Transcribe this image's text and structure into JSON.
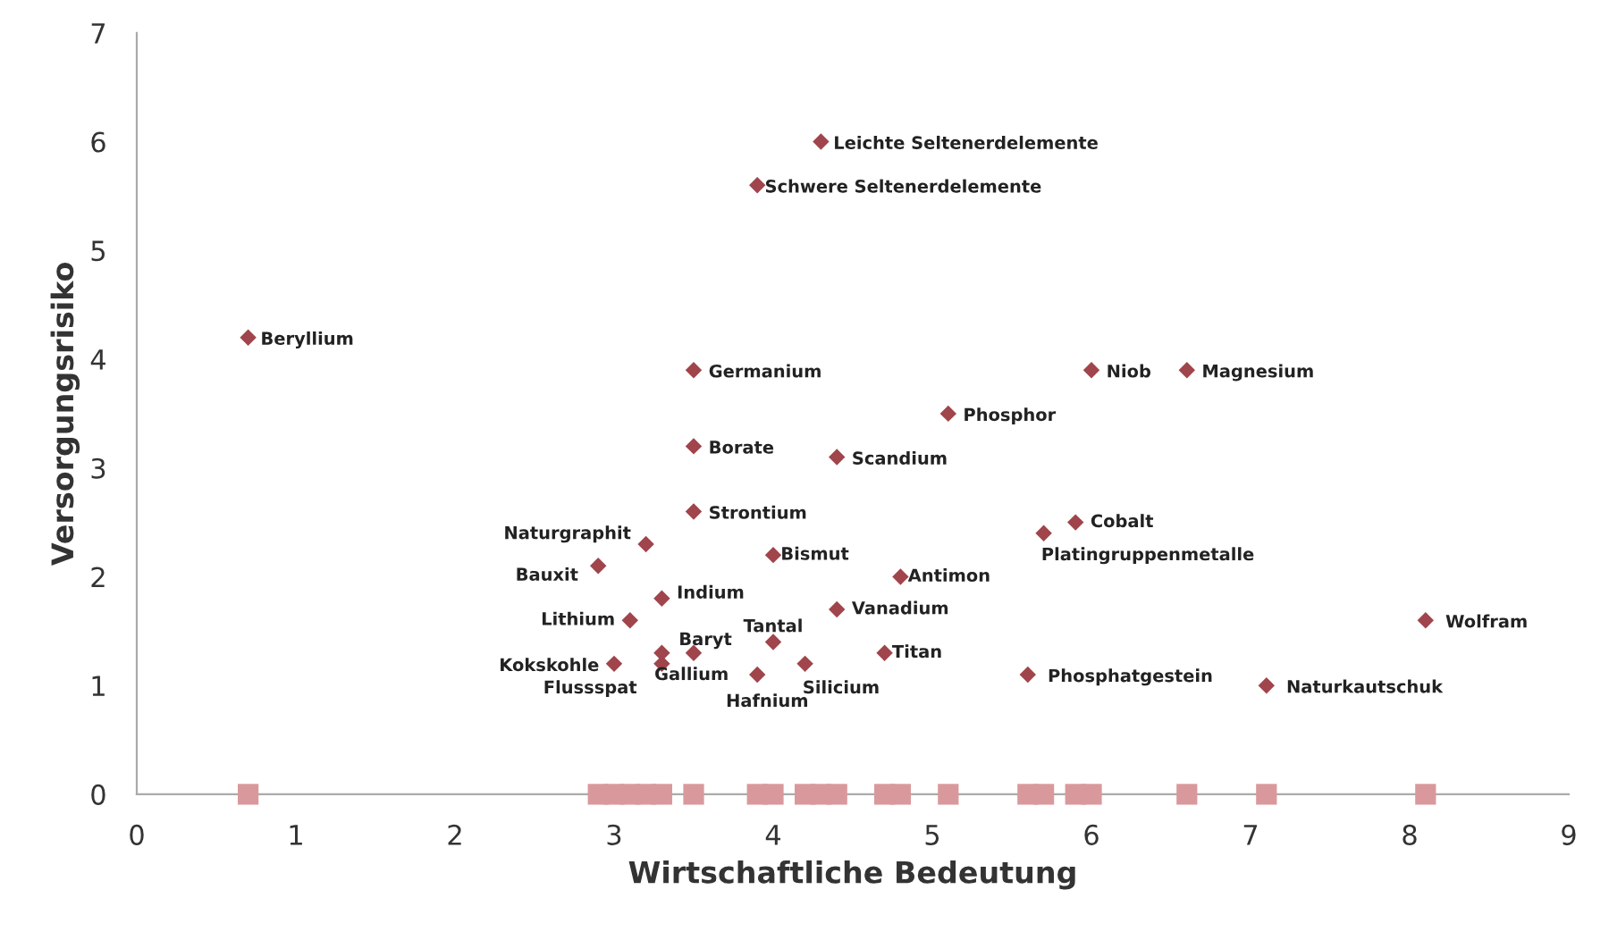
{
  "chart_data": {
    "type": "scatter",
    "xlabel": "Wirtschaftliche Bedeutung",
    "ylabel": "Versorgungsrisiko",
    "xlim": [
      0,
      9
    ],
    "xticks": [
      0,
      1,
      2,
      3,
      4,
      5,
      6,
      7,
      8,
      9
    ],
    "ylim": [
      0,
      7
    ],
    "yticks": [
      0,
      1,
      2,
      3,
      4,
      5,
      6,
      7
    ],
    "grid": false,
    "series": [
      {
        "color": "#a0454b",
        "marker": "diamond",
        "x": [
          4.3,
          3.9,
          0.7,
          3.5,
          6.0,
          6.6,
          5.1,
          3.5,
          4.4,
          3.5,
          3.2,
          2.9,
          4.0,
          4.8,
          5.9,
          5.7,
          3.3,
          4.4,
          3.1,
          3.5,
          4.0,
          4.7,
          3.0,
          3.3,
          3.3,
          3.9,
          4.2,
          5.6,
          7.1,
          8.1
        ],
        "values": [
          6.0,
          5.6,
          4.2,
          3.9,
          3.9,
          3.9,
          3.5,
          3.2,
          3.1,
          2.6,
          2.3,
          2.1,
          2.2,
          2.0,
          2.5,
          2.4,
          1.8,
          1.7,
          1.6,
          1.3,
          1.4,
          1.3,
          1.2,
          1.2,
          1.3,
          1.1,
          1.2,
          1.1,
          1.0,
          1.6
        ]
      },
      {
        "color": "#d9999c",
        "marker": "square",
        "x": [
          0.7,
          2.9,
          3.0,
          3.1,
          3.2,
          3.3,
          3.5,
          3.9,
          4.0,
          4.2,
          4.3,
          4.4,
          4.7,
          4.8,
          5.1,
          5.6,
          5.7,
          5.9,
          6.0,
          6.6,
          7.1,
          8.1
        ],
        "values": [
          0,
          0,
          0,
          0,
          0,
          0,
          0,
          0,
          0,
          0,
          0,
          0,
          0,
          0,
          0,
          0,
          0,
          0,
          0,
          0,
          0,
          0
        ]
      }
    ],
    "annotations": [
      {
        "text": "Leichte Seltenerdelemente",
        "x": 4.3,
        "y": 6.0
      },
      {
        "text": "Schwere Seltenerdelemente",
        "x": 3.9,
        "y": 5.6
      },
      {
        "text": "Beryllium",
        "x": 0.7,
        "y": 4.2
      },
      {
        "text": "Germanium",
        "x": 3.5,
        "y": 3.9
      },
      {
        "text": "Niob",
        "x": 6.0,
        "y": 3.9
      },
      {
        "text": "Magnesium",
        "x": 6.6,
        "y": 3.9
      },
      {
        "text": "Phosphor",
        "x": 5.1,
        "y": 3.5
      },
      {
        "text": "Borate",
        "x": 3.5,
        "y": 3.2
      },
      {
        "text": "Scandium",
        "x": 4.4,
        "y": 3.1
      },
      {
        "text": "Strontium",
        "x": 3.5,
        "y": 2.6
      },
      {
        "text": "Naturgraphit",
        "x": 3.2,
        "y": 2.3
      },
      {
        "text": "Bauxit",
        "x": 2.9,
        "y": 2.1
      },
      {
        "text": "Bismut",
        "x": 4.0,
        "y": 2.2
      },
      {
        "text": "Antimon",
        "x": 4.8,
        "y": 2.0
      },
      {
        "text": "Cobalt",
        "x": 5.9,
        "y": 2.5
      },
      {
        "text": "Platingruppenmetalle",
        "x": 5.7,
        "y": 2.4
      },
      {
        "text": "Indium",
        "x": 3.3,
        "y": 1.8
      },
      {
        "text": "Vanadium",
        "x": 4.4,
        "y": 1.7
      },
      {
        "text": "Lithium",
        "x": 3.1,
        "y": 1.6
      },
      {
        "text": "Baryt",
        "x": 3.5,
        "y": 1.3
      },
      {
        "text": "Tantal",
        "x": 4.0,
        "y": 1.4
      },
      {
        "text": "Titan",
        "x": 4.7,
        "y": 1.3
      },
      {
        "text": "Kokskohle",
        "x": 3.0,
        "y": 1.2
      },
      {
        "text": "Flussspat",
        "x": 3.3,
        "y": 1.2
      },
      {
        "text": "Gallium",
        "x": 3.3,
        "y": 1.3
      },
      {
        "text": "Hafnium",
        "x": 3.9,
        "y": 1.1
      },
      {
        "text": "Silicium",
        "x": 4.2,
        "y": 1.2
      },
      {
        "text": "Phosphatgestein",
        "x": 5.6,
        "y": 1.1
      },
      {
        "text": "Naturkautschuk",
        "x": 7.1,
        "y": 1.0
      },
      {
        "text": "Wolfram",
        "x": 8.1,
        "y": 1.6
      }
    ]
  }
}
